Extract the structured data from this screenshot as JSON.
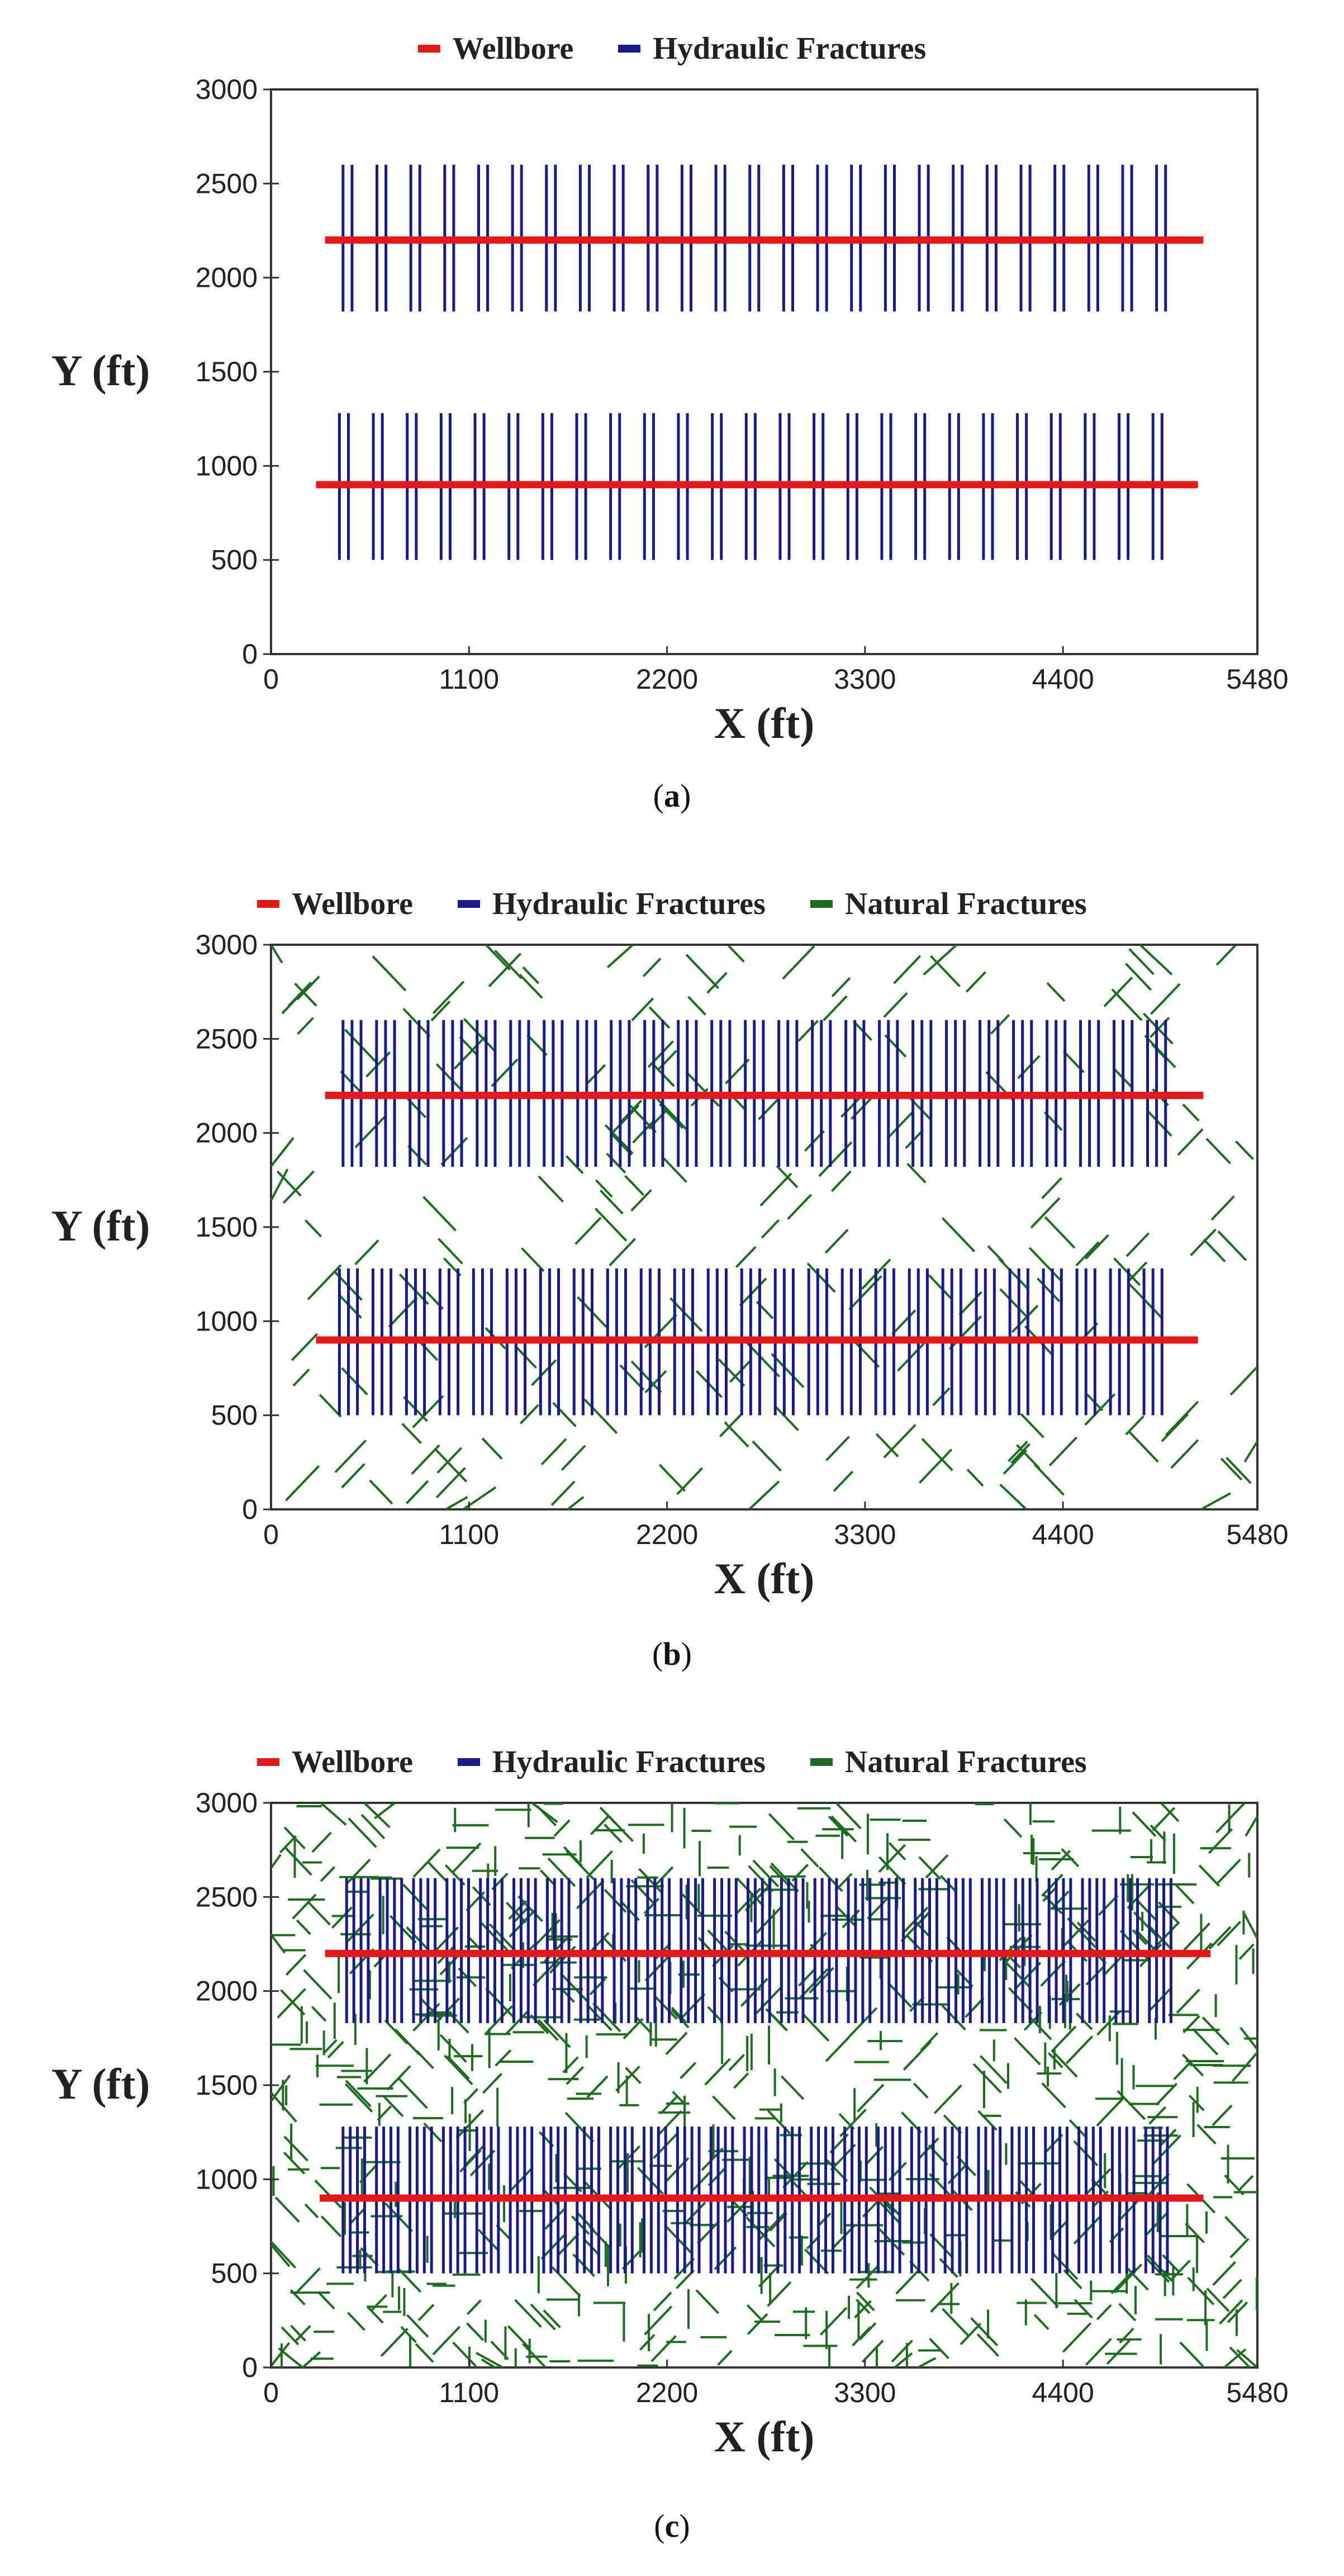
{
  "colors": {
    "wellbore": "#e31a1c",
    "hydraulic": "#1a1a8a",
    "natural": "#1f6b1f",
    "axis": "#333333",
    "text": "#222222"
  },
  "legend_labels": {
    "wellbore": "Wellbore",
    "hydraulic": "Hydraulic Fractures",
    "natural": "Natural Fractures"
  },
  "captions": {
    "a": "a",
    "b": "b",
    "c": "c"
  },
  "chart_data": [
    {
      "type": "line",
      "panel": "a",
      "xlabel": "X (ft)",
      "ylabel": "Y (ft)",
      "xlim": [
        0,
        5480
      ],
      "ylim": [
        0,
        3000
      ],
      "x_ticks": [
        0,
        1100,
        2200,
        3300,
        4400,
        5480
      ],
      "y_ticks": [
        0,
        500,
        1000,
        1500,
        2000,
        2500,
        3000
      ],
      "legend": [
        "Wellbore",
        "Hydraulic Fractures"
      ],
      "series": [
        {
          "name": "Wellbore",
          "segments": [
            [
              [
                300,
                2200
              ],
              [
                5180,
                2200
              ]
            ],
            [
              [
                250,
                900
              ],
              [
                5150,
                900
              ]
            ]
          ]
        },
        {
          "name": "Hydraulic Fractures",
          "wells": [
            {
              "y_min": 1820,
              "y_max": 2600,
              "x_start": 400,
              "x_end": 4970,
              "stages": 25,
              "per_stage": 2,
              "spacing_ft": 50
            },
            {
              "y_min": 500,
              "y_max": 1280,
              "x_start": 380,
              "x_end": 4950,
              "stages": 25,
              "per_stage": 2,
              "spacing_ft": 50
            }
          ]
        }
      ]
    },
    {
      "type": "line",
      "panel": "b",
      "xlabel": "X (ft)",
      "ylabel": "Y (ft)",
      "xlim": [
        0,
        5480
      ],
      "ylim": [
        0,
        3000
      ],
      "x_ticks": [
        0,
        1100,
        2200,
        3300,
        4400,
        5480
      ],
      "y_ticks": [
        0,
        500,
        1000,
        1500,
        2000,
        2500,
        3000
      ],
      "legend": [
        "Wellbore",
        "Hydraulic Fractures",
        "Natural Fractures"
      ],
      "series": [
        {
          "name": "Wellbore",
          "segments": [
            [
              [
                300,
                2200
              ],
              [
                5180,
                2200
              ]
            ],
            [
              [
                250,
                900
              ],
              [
                5150,
                900
              ]
            ]
          ]
        },
        {
          "name": "Hydraulic Fractures",
          "wells": [
            {
              "y_min": 1820,
              "y_max": 2600,
              "x_start": 400,
              "x_end": 4970,
              "stages": 25,
              "per_stage": 3,
              "spacing_ft": 50
            },
            {
              "y_min": 500,
              "y_max": 1280,
              "x_start": 380,
              "x_end": 4950,
              "stages": 25,
              "per_stage": 3,
              "spacing_ft": 50
            }
          ]
        },
        {
          "name": "Natural Fractures",
          "count": 240,
          "length_ft": [
            120,
            260
          ],
          "orientations_deg": [
            45,
            135
          ],
          "distribution": "random"
        }
      ]
    },
    {
      "type": "line",
      "panel": "c",
      "xlabel": "X (ft)",
      "ylabel": "Y (ft)",
      "xlim": [
        0,
        5480
      ],
      "ylim": [
        0,
        3000
      ],
      "x_ticks": [
        0,
        1100,
        2200,
        3300,
        4400,
        5480
      ],
      "y_ticks": [
        0,
        500,
        1000,
        1500,
        2000,
        2500,
        3000
      ],
      "legend": [
        "Wellbore",
        "Hydraulic Fractures",
        "Natural Fractures"
      ],
      "series": [
        {
          "name": "Wellbore",
          "segments": [
            [
              [
                300,
                2200
              ],
              [
                5220,
                2200
              ]
            ],
            [
              [
                270,
                900
              ],
              [
                5180,
                900
              ]
            ]
          ]
        },
        {
          "name": "Hydraulic Fractures",
          "wells": [
            {
              "y_min": 1830,
              "y_max": 2600,
              "x_start": 420,
              "x_end": 5000,
              "stages": 25,
              "per_stage": 4,
              "spacing_ft": 40
            },
            {
              "y_min": 500,
              "y_max": 1280,
              "x_start": 400,
              "x_end": 4980,
              "stages": 25,
              "per_stage": 4,
              "spacing_ft": 40
            }
          ]
        },
        {
          "name": "Natural Fractures",
          "count": 900,
          "length_ft": [
            100,
            220
          ],
          "orientations_deg": [
            0,
            45,
            90,
            135
          ],
          "distribution": "random"
        }
      ]
    }
  ]
}
